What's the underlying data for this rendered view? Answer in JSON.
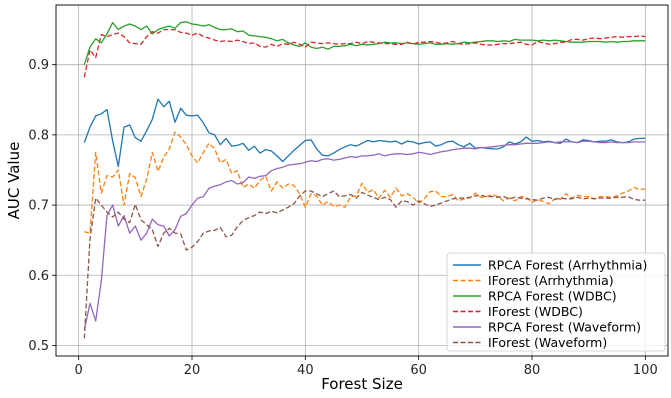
{
  "chart_data": {
    "type": "line",
    "title": "",
    "xlabel": "Forest Size",
    "ylabel": "AUC Value",
    "xlim": [
      -4,
      104
    ],
    "ylim": [
      0.485,
      0.985
    ],
    "xticks": [
      0,
      20,
      40,
      60,
      80,
      100
    ],
    "yticks": [
      0.5,
      0.6,
      0.7,
      0.8,
      0.9
    ],
    "grid": true,
    "legend_position": "lower-right",
    "x": [
      1,
      2,
      3,
      4,
      5,
      6,
      7,
      8,
      9,
      10,
      11,
      12,
      13,
      14,
      15,
      16,
      17,
      18,
      19,
      20,
      21,
      22,
      23,
      24,
      25,
      26,
      27,
      28,
      29,
      30,
      31,
      32,
      33,
      34,
      35,
      36,
      37,
      38,
      39,
      40,
      41,
      42,
      43,
      44,
      45,
      46,
      47,
      48,
      49,
      50,
      51,
      52,
      53,
      54,
      55,
      56,
      57,
      58,
      59,
      60,
      61,
      62,
      63,
      64,
      65,
      66,
      67,
      68,
      69,
      70,
      71,
      72,
      73,
      74,
      75,
      76,
      77,
      78,
      79,
      80,
      81,
      82,
      83,
      84,
      85,
      86,
      87,
      88,
      89,
      90,
      91,
      92,
      93,
      94,
      95,
      96,
      97,
      98,
      99,
      100
    ],
    "series": [
      {
        "name": "RPCA Forest (Arrhythmia)",
        "color": "#1f77b4",
        "dash": "solid",
        "values": [
          0.789,
          0.811,
          0.827,
          0.83,
          0.836,
          0.791,
          0.755,
          0.811,
          0.814,
          0.796,
          0.791,
          0.806,
          0.822,
          0.851,
          0.84,
          0.848,
          0.818,
          0.838,
          0.828,
          0.827,
          0.828,
          0.817,
          0.803,
          0.8,
          0.786,
          0.795,
          0.784,
          0.785,
          0.788,
          0.778,
          0.784,
          0.774,
          0.779,
          0.777,
          0.77,
          0.762,
          0.77,
          0.778,
          0.785,
          0.792,
          0.793,
          0.78,
          0.771,
          0.77,
          0.774,
          0.779,
          0.783,
          0.786,
          0.784,
          0.788,
          0.792,
          0.79,
          0.792,
          0.791,
          0.79,
          0.791,
          0.787,
          0.791,
          0.79,
          0.787,
          0.789,
          0.79,
          0.784,
          0.786,
          0.79,
          0.791,
          0.786,
          0.783,
          0.788,
          0.781,
          0.782,
          0.781,
          0.78,
          0.78,
          0.783,
          0.79,
          0.787,
          0.79,
          0.797,
          0.791,
          0.792,
          0.79,
          0.791,
          0.789,
          0.788,
          0.794,
          0.79,
          0.789,
          0.793,
          0.792,
          0.79,
          0.791,
          0.791,
          0.793,
          0.79,
          0.789,
          0.79,
          0.794,
          0.795,
          0.795
        ]
      },
      {
        "name": "IForest (Arrhythmia)",
        "color": "#ff7f0e",
        "dash": "dashed",
        "values": [
          0.662,
          0.66,
          0.775,
          0.717,
          0.742,
          0.74,
          0.75,
          0.7,
          0.745,
          0.739,
          0.712,
          0.737,
          0.775,
          0.748,
          0.768,
          0.78,
          0.804,
          0.797,
          0.786,
          0.77,
          0.76,
          0.775,
          0.788,
          0.78,
          0.76,
          0.765,
          0.745,
          0.749,
          0.725,
          0.73,
          0.724,
          0.735,
          0.741,
          0.72,
          0.733,
          0.724,
          0.73,
          0.728,
          0.716,
          0.697,
          0.716,
          0.713,
          0.7,
          0.705,
          0.698,
          0.7,
          0.697,
          0.712,
          0.713,
          0.731,
          0.718,
          0.722,
          0.71,
          0.721,
          0.711,
          0.724,
          0.713,
          0.716,
          0.711,
          0.703,
          0.709,
          0.719,
          0.72,
          0.712,
          0.712,
          0.715,
          0.706,
          0.709,
          0.71,
          0.717,
          0.711,
          0.712,
          0.715,
          0.712,
          0.706,
          0.71,
          0.706,
          0.712,
          0.711,
          0.704,
          0.708,
          0.705,
          0.702,
          0.709,
          0.708,
          0.716,
          0.71,
          0.714,
          0.712,
          0.712,
          0.709,
          0.712,
          0.712,
          0.711,
          0.713,
          0.717,
          0.72,
          0.725,
          0.722,
          0.723
        ]
      },
      {
        "name": "RPCA Forest (WDBC)",
        "color": "#2ca02c",
        "dash": "solid",
        "values": [
          0.9,
          0.925,
          0.937,
          0.931,
          0.944,
          0.96,
          0.95,
          0.955,
          0.958,
          0.955,
          0.95,
          0.955,
          0.944,
          0.95,
          0.953,
          0.955,
          0.952,
          0.96,
          0.961,
          0.958,
          0.957,
          0.955,
          0.957,
          0.953,
          0.95,
          0.95,
          0.951,
          0.947,
          0.948,
          0.942,
          0.941,
          0.94,
          0.939,
          0.937,
          0.934,
          0.936,
          0.931,
          0.928,
          0.926,
          0.931,
          0.925,
          0.923,
          0.925,
          0.922,
          0.926,
          0.926,
          0.927,
          0.929,
          0.927,
          0.929,
          0.928,
          0.929,
          0.93,
          0.932,
          0.931,
          0.931,
          0.93,
          0.931,
          0.93,
          0.929,
          0.93,
          0.931,
          0.929,
          0.929,
          0.93,
          0.929,
          0.93,
          0.932,
          0.931,
          0.932,
          0.933,
          0.934,
          0.934,
          0.933,
          0.934,
          0.933,
          0.936,
          0.935,
          0.935,
          0.935,
          0.934,
          0.935,
          0.934,
          0.935,
          0.934,
          0.933,
          0.932,
          0.932,
          0.932,
          0.933,
          0.933,
          0.933,
          0.932,
          0.933,
          0.932,
          0.933,
          0.933,
          0.934,
          0.934,
          0.934
        ]
      },
      {
        "name": "IForest (WDBC)",
        "color": "#d62728",
        "dash": "dashed",
        "values": [
          0.882,
          0.921,
          0.91,
          0.943,
          0.94,
          0.943,
          0.945,
          0.94,
          0.931,
          0.93,
          0.929,
          0.94,
          0.947,
          0.945,
          0.95,
          0.95,
          0.95,
          0.946,
          0.945,
          0.942,
          0.945,
          0.94,
          0.938,
          0.935,
          0.933,
          0.934,
          0.933,
          0.935,
          0.933,
          0.93,
          0.931,
          0.926,
          0.925,
          0.929,
          0.926,
          0.93,
          0.929,
          0.932,
          0.929,
          0.925,
          0.932,
          0.931,
          0.93,
          0.931,
          0.93,
          0.929,
          0.93,
          0.93,
          0.932,
          0.93,
          0.933,
          0.932,
          0.931,
          0.93,
          0.93,
          0.929,
          0.929,
          0.932,
          0.929,
          0.932,
          0.932,
          0.933,
          0.932,
          0.93,
          0.931,
          0.933,
          0.93,
          0.929,
          0.93,
          0.931,
          0.929,
          0.928,
          0.928,
          0.929,
          0.93,
          0.93,
          0.931,
          0.932,
          0.929,
          0.928,
          0.933,
          0.931,
          0.929,
          0.93,
          0.932,
          0.932,
          0.936,
          0.936,
          0.935,
          0.937,
          0.938,
          0.937,
          0.938,
          0.939,
          0.94,
          0.939,
          0.94,
          0.94,
          0.941,
          0.94
        ]
      },
      {
        "name": "RPCA Forest (Waveform)",
        "color": "#9467bd",
        "dash": "solid",
        "values": [
          0.522,
          0.56,
          0.535,
          0.592,
          0.685,
          0.7,
          0.67,
          0.685,
          0.66,
          0.67,
          0.65,
          0.66,
          0.68,
          0.672,
          0.67,
          0.656,
          0.665,
          0.684,
          0.688,
          0.7,
          0.71,
          0.712,
          0.724,
          0.727,
          0.729,
          0.733,
          0.735,
          0.73,
          0.732,
          0.74,
          0.738,
          0.741,
          0.742,
          0.749,
          0.752,
          0.754,
          0.757,
          0.758,
          0.759,
          0.761,
          0.763,
          0.762,
          0.765,
          0.766,
          0.764,
          0.765,
          0.767,
          0.769,
          0.768,
          0.77,
          0.77,
          0.771,
          0.773,
          0.77,
          0.772,
          0.773,
          0.773,
          0.772,
          0.773,
          0.775,
          0.774,
          0.772,
          0.774,
          0.776,
          0.777,
          0.779,
          0.78,
          0.781,
          0.781,
          0.78,
          0.782,
          0.782,
          0.783,
          0.784,
          0.785,
          0.786,
          0.786,
          0.787,
          0.788,
          0.788,
          0.788,
          0.789,
          0.79,
          0.789,
          0.79,
          0.79,
          0.79,
          0.789,
          0.791,
          0.791,
          0.79,
          0.789,
          0.789,
          0.79,
          0.789,
          0.789,
          0.789,
          0.79,
          0.79,
          0.79
        ]
      },
      {
        "name": "IForest (Waveform)",
        "color": "#8c564b",
        "dash": "dashed",
        "values": [
          0.51,
          0.652,
          0.71,
          0.7,
          0.69,
          0.683,
          0.69,
          0.68,
          0.675,
          0.701,
          0.679,
          0.672,
          0.665,
          0.641,
          0.66,
          0.667,
          0.66,
          0.659,
          0.636,
          0.64,
          0.648,
          0.66,
          0.663,
          0.664,
          0.668,
          0.655,
          0.657,
          0.669,
          0.678,
          0.682,
          0.685,
          0.69,
          0.688,
          0.691,
          0.689,
          0.693,
          0.697,
          0.702,
          0.713,
          0.72,
          0.72,
          0.716,
          0.712,
          0.716,
          0.72,
          0.712,
          0.713,
          0.715,
          0.71,
          0.718,
          0.714,
          0.711,
          0.708,
          0.711,
          0.708,
          0.697,
          0.706,
          0.705,
          0.7,
          0.706,
          0.702,
          0.698,
          0.7,
          0.703,
          0.706,
          0.709,
          0.71,
          0.71,
          0.711,
          0.713,
          0.714,
          0.712,
          0.712,
          0.711,
          0.712,
          0.709,
          0.711,
          0.71,
          0.709,
          0.708,
          0.707,
          0.71,
          0.711,
          0.708,
          0.71,
          0.709,
          0.709,
          0.711,
          0.709,
          0.71,
          0.709,
          0.71,
          0.71,
          0.71,
          0.711,
          0.711,
          0.712,
          0.708,
          0.707,
          0.707
        ]
      }
    ]
  }
}
